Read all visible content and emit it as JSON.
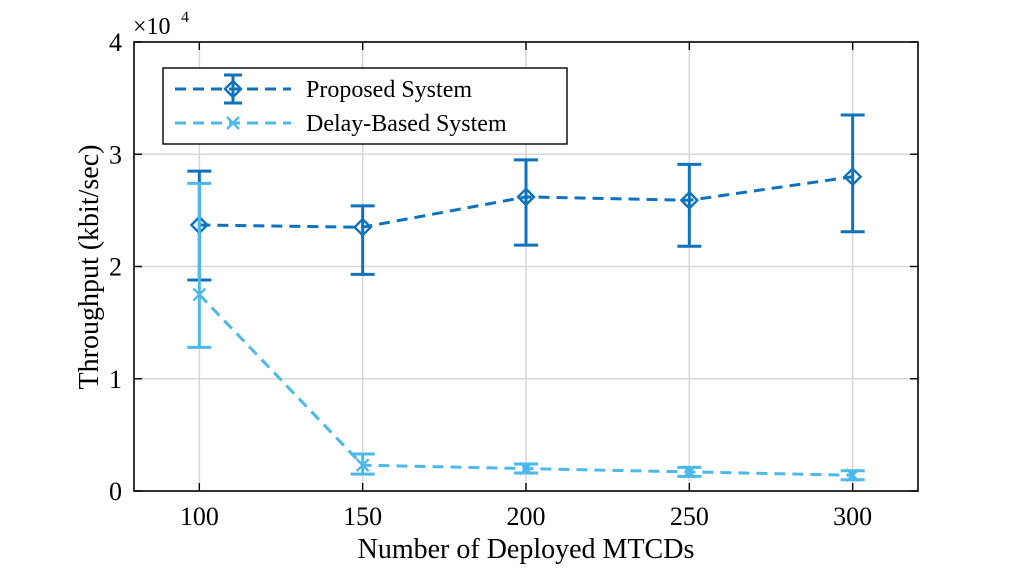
{
  "chart_data": {
    "type": "line",
    "xlabel": "Number of Deployed MTCDs",
    "ylabel": "Throughput (kbit/sec)",
    "y_multiplier": {
      "base": "×10",
      "exponent": "4"
    },
    "x": [
      100,
      150,
      200,
      250,
      300
    ],
    "xticks": [
      "100",
      "150",
      "200",
      "250",
      "300"
    ],
    "yticks": [
      "0",
      "1",
      "2",
      "3",
      "4"
    ],
    "xlim": [
      80,
      320
    ],
    "ylim": [
      0,
      40000
    ],
    "grid": true,
    "legend_position": "top-left",
    "series": [
      {
        "name": "Proposed System",
        "color": "#0e72bd",
        "marker": "diamond",
        "values": [
          23700,
          23500,
          26200,
          25900,
          28000
        ],
        "err_low": [
          18800,
          19300,
          21900,
          21800,
          23100
        ],
        "err_high": [
          28500,
          25400,
          29500,
          29100,
          33500
        ]
      },
      {
        "name": "Delay-Based System",
        "color": "#4db8ea",
        "marker": "x",
        "values": [
          17500,
          2300,
          2000,
          1700,
          1400
        ],
        "err_low": [
          12800,
          1500,
          1600,
          1300,
          1000
        ],
        "err_high": [
          27400,
          3300,
          2400,
          2100,
          1800
        ]
      }
    ]
  }
}
